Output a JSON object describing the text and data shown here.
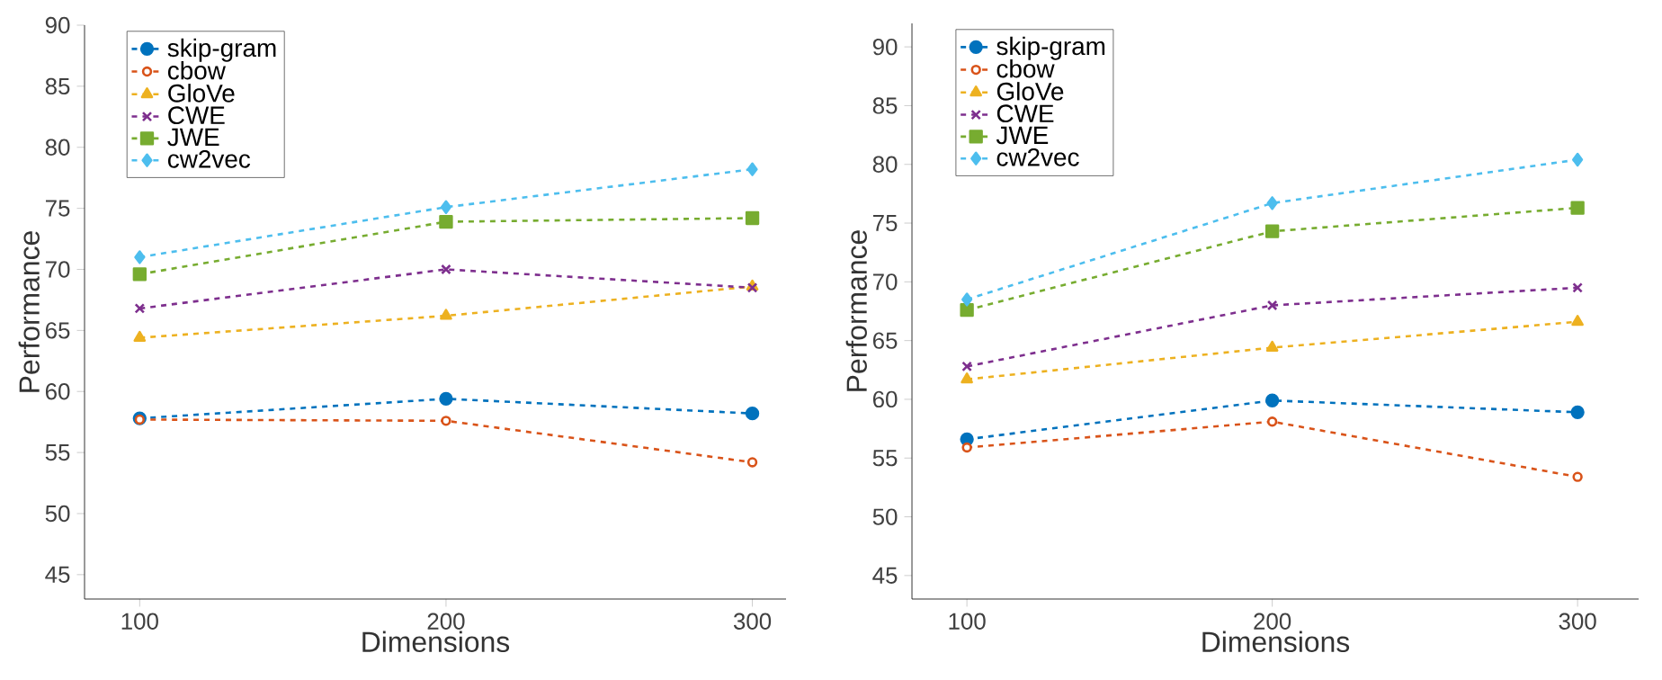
{
  "chart_data": [
    {
      "type": "line",
      "xlabel": "Dimensions",
      "ylabel": "Performance",
      "x": [
        100,
        200,
        300
      ],
      "xlim": [
        82,
        311
      ],
      "ylim": [
        43,
        90
      ],
      "xticks": [
        100,
        200,
        300
      ],
      "yticks": [
        45,
        50,
        55,
        60,
        65,
        70,
        75,
        80,
        85,
        90
      ],
      "legend": "top left",
      "line_style": "dashed",
      "grid": false,
      "series": [
        {
          "name": "skip-gram",
          "color": "#0072bd",
          "marker": "circle",
          "values": [
            57.8,
            59.4,
            58.2
          ]
        },
        {
          "name": "cbow",
          "color": "#d95319",
          "marker": "circle",
          "values": [
            57.7,
            57.6,
            54.2
          ]
        },
        {
          "name": "GloVe",
          "color": "#edb120",
          "marker": "triangle",
          "values": [
            64.4,
            66.2,
            68.6
          ]
        },
        {
          "name": "CWE",
          "color": "#7e2f8e",
          "marker": "cross",
          "values": [
            66.8,
            70.0,
            68.5
          ]
        },
        {
          "name": "JWE",
          "color": "#77ac30",
          "marker": "square",
          "values": [
            69.6,
            73.9,
            74.2
          ]
        },
        {
          "name": "cw2vec",
          "color": "#4dbeee",
          "marker": "diamond",
          "values": [
            71.0,
            75.1,
            78.2
          ]
        }
      ]
    },
    {
      "type": "line",
      "xlabel": "Dimensions",
      "ylabel": "Performance",
      "x": [
        100,
        200,
        300
      ],
      "xlim": [
        82,
        320
      ],
      "ylim": [
        43,
        92
      ],
      "xticks": [
        100,
        200,
        300
      ],
      "yticks": [
        45,
        50,
        55,
        60,
        65,
        70,
        75,
        80,
        85,
        90
      ],
      "legend": "top left",
      "line_style": "dashed",
      "grid": false,
      "series": [
        {
          "name": "skip-gram",
          "color": "#0072bd",
          "marker": "circle",
          "values": [
            56.6,
            59.9,
            58.9
          ]
        },
        {
          "name": "cbow",
          "color": "#d95319",
          "marker": "circle",
          "values": [
            55.9,
            58.1,
            53.4
          ]
        },
        {
          "name": "GloVe",
          "color": "#edb120",
          "marker": "triangle",
          "values": [
            61.7,
            64.4,
            66.6
          ]
        },
        {
          "name": "CWE",
          "color": "#7e2f8e",
          "marker": "cross",
          "values": [
            62.8,
            68.0,
            69.5
          ]
        },
        {
          "name": "JWE",
          "color": "#77ac30",
          "marker": "square",
          "values": [
            67.6,
            74.3,
            76.3
          ]
        },
        {
          "name": "cw2vec",
          "color": "#4dbeee",
          "marker": "diamond",
          "values": [
            68.5,
            76.7,
            80.4
          ]
        }
      ]
    }
  ]
}
